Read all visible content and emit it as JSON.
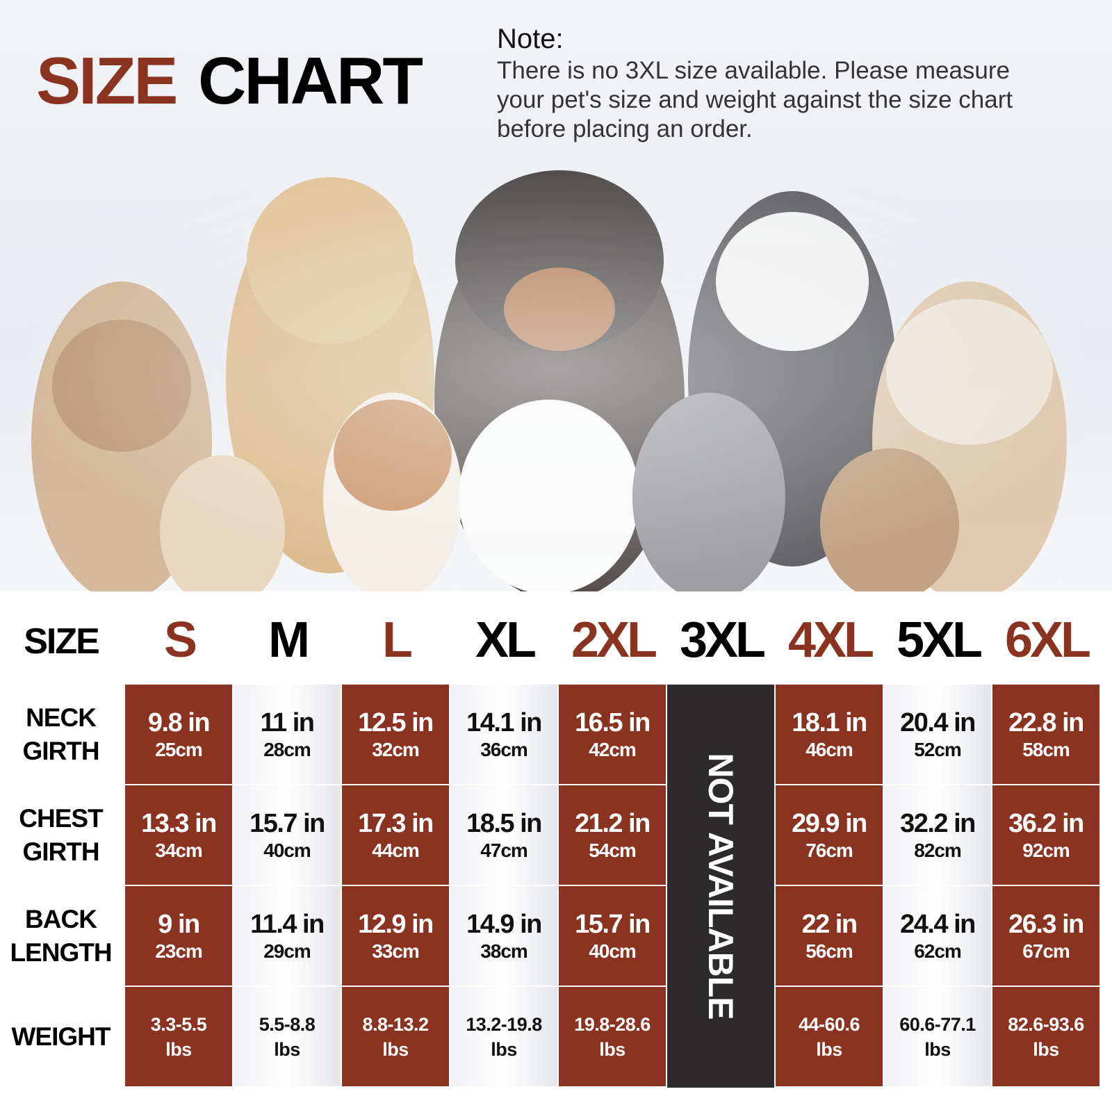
{
  "header": {
    "title_a": "SIZE",
    "title_b": "CHART"
  },
  "note": {
    "label": "Note:",
    "lines": [
      "There is no 3XL size available. Please measure",
      "your pet's size and weight against the size chart",
      "before placing an order."
    ]
  },
  "table": {
    "corner": "SIZE",
    "columns": [
      "S",
      "M",
      "L",
      "XL",
      "2XL",
      "3XL",
      "4XL",
      "5XL",
      "6XL"
    ],
    "unavailable": "NOT AVAILABLE",
    "rows": [
      {
        "label": [
          "NECK",
          "GIRTH"
        ],
        "cells": [
          [
            "9.8 in",
            "25cm"
          ],
          [
            "11 in",
            "28cm"
          ],
          [
            "12.5 in",
            "32cm"
          ],
          [
            "14.1 in",
            "36cm"
          ],
          [
            "16.5 in",
            "42cm"
          ],
          null,
          [
            "18.1 in",
            "46cm"
          ],
          [
            "20.4 in",
            "52cm"
          ],
          [
            "22.8 in",
            "58cm"
          ]
        ]
      },
      {
        "label": [
          "CHEST",
          "GIRTH"
        ],
        "cells": [
          [
            "13.3 in",
            "34cm"
          ],
          [
            "15.7 in",
            "40cm"
          ],
          [
            "17.3 in",
            "44cm"
          ],
          [
            "18.5 in",
            "47cm"
          ],
          [
            "21.2 in",
            "54cm"
          ],
          null,
          [
            "29.9 in",
            "76cm"
          ],
          [
            "32.2 in",
            "82cm"
          ],
          [
            "36.2 in",
            "92cm"
          ]
        ]
      },
      {
        "label": [
          "BACK",
          "LENGTH"
        ],
        "cells": [
          [
            "9 in",
            "23cm"
          ],
          [
            "11.4 in",
            "29cm"
          ],
          [
            "12.9 in",
            "33cm"
          ],
          [
            "14.9 in",
            "38cm"
          ],
          [
            "15.7 in",
            "40cm"
          ],
          null,
          [
            "22 in",
            "56cm"
          ],
          [
            "24.4 in",
            "62cm"
          ],
          [
            "26.3 in",
            "67cm"
          ]
        ]
      },
      {
        "label": [
          "WEIGHT"
        ],
        "cells": [
          [
            "3.3-5.5",
            "lbs"
          ],
          [
            "5.5-8.8",
            "lbs"
          ],
          [
            "8.8-13.2",
            "lbs"
          ],
          [
            "13.2-19.8",
            "lbs"
          ],
          [
            "19.8-28.6",
            "lbs"
          ],
          null,
          [
            "44-60.6",
            "lbs"
          ],
          [
            "60.6-77.1",
            "lbs"
          ],
          [
            "82.6-93.6",
            "lbs"
          ]
        ]
      }
    ]
  }
}
